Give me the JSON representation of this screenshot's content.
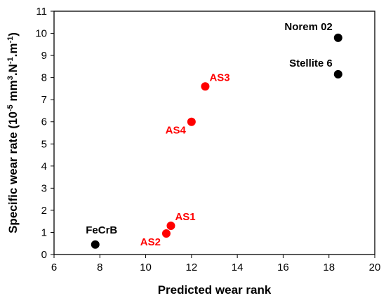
{
  "chart_data": {
    "type": "scatter",
    "title": "",
    "xlabel": "Predicted wear rank",
    "ylabel_parts": {
      "prefix": "Specific wear rate (10",
      "exp1": "-5",
      "mid1": " mm",
      "exp2": "3",
      "mid2": ".N",
      "exp3": "-1",
      "mid3": ".m",
      "exp4": "-1",
      "suffix": ")"
    },
    "xlim": [
      6,
      20
    ],
    "ylim": [
      0,
      11
    ],
    "xticks": [
      6,
      8,
      10,
      12,
      14,
      16,
      18,
      20
    ],
    "yticks": [
      0,
      1,
      2,
      3,
      4,
      5,
      6,
      7,
      8,
      9,
      10,
      11
    ],
    "grid": false,
    "legend": "none",
    "colors": {
      "reference": "#000000",
      "alloy": "#ff0000"
    },
    "points": [
      {
        "label": "FeCrB",
        "x": 7.8,
        "y": 0.45,
        "group": "reference",
        "label_pos": "above-left"
      },
      {
        "label": "AS2",
        "x": 10.9,
        "y": 0.95,
        "group": "alloy",
        "label_pos": "below-left"
      },
      {
        "label": "AS1",
        "x": 11.1,
        "y": 1.3,
        "group": "alloy",
        "label_pos": "above-right"
      },
      {
        "label": "AS4",
        "x": 12.0,
        "y": 6.0,
        "group": "alloy",
        "label_pos": "below-left"
      },
      {
        "label": "AS3",
        "x": 12.6,
        "y": 7.6,
        "group": "alloy",
        "label_pos": "above-right"
      },
      {
        "label": "Stellite 6",
        "x": 18.4,
        "y": 8.15,
        "group": "reference",
        "label_pos": "above-left"
      },
      {
        "label": "Norem 02",
        "x": 18.4,
        "y": 9.8,
        "group": "reference",
        "label_pos": "above-left"
      }
    ]
  }
}
